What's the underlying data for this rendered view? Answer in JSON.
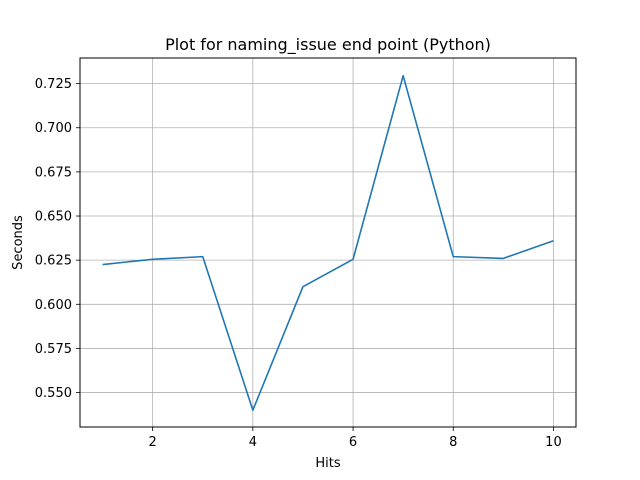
{
  "chart_data": {
    "type": "line",
    "title": "Plot for naming_issue end point (Python)",
    "xlabel": "Hits",
    "ylabel": "Seconds",
    "xlim": [
      0.55,
      10.45
    ],
    "ylim": [
      0.5305,
      0.7395
    ],
    "xticks": [
      2,
      4,
      6,
      8,
      10
    ],
    "xtick_labels": [
      "2",
      "4",
      "6",
      "8",
      "10"
    ],
    "yticks": [
      0.55,
      0.575,
      0.6,
      0.625,
      0.65,
      0.675,
      0.7,
      0.725
    ],
    "ytick_labels": [
      "0.550",
      "0.575",
      "0.600",
      "0.625",
      "0.650",
      "0.675",
      "0.700",
      "0.725"
    ],
    "grid": true,
    "series": [
      {
        "x": [
          1,
          2,
          3,
          4,
          5,
          6,
          7,
          8,
          9,
          10
        ],
        "values": [
          0.6225,
          0.6255,
          0.627,
          0.54,
          0.61,
          0.6255,
          0.7295,
          0.627,
          0.626,
          0.636
        ],
        "color": "#1f77b4"
      }
    ]
  }
}
